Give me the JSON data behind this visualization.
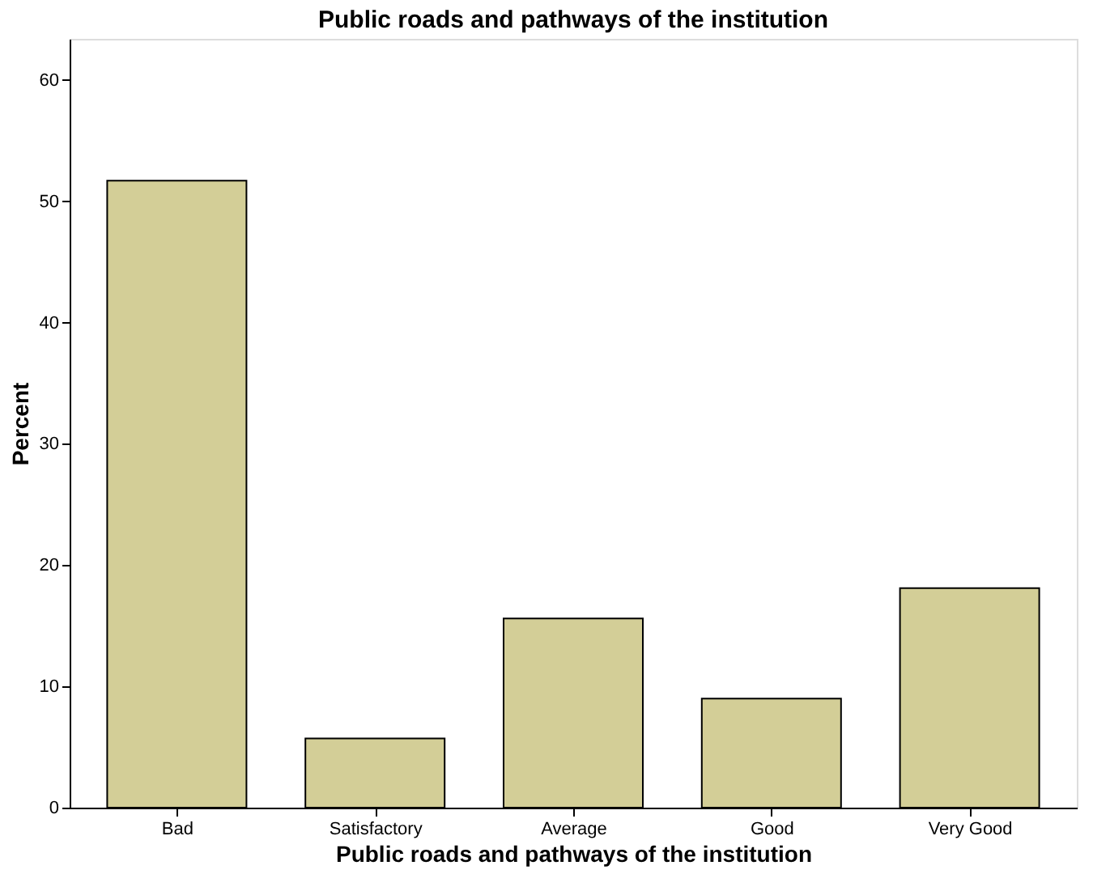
{
  "chart_data": {
    "type": "bar",
    "title": "Public roads and pathways of the institution",
    "xlabel": "Public roads and pathways of the institution",
    "ylabel": "Percent",
    "categories": [
      "Bad",
      "Satisfactory",
      "Average",
      "Good",
      "Very Good"
    ],
    "values": [
      51.7,
      5.7,
      15.6,
      9.0,
      18.1
    ],
    "color": "#d3ce97",
    "ylim": [
      0,
      63.4
    ],
    "yticks": [
      0,
      10,
      20,
      30,
      40,
      50,
      60
    ],
    "grid": false
  }
}
